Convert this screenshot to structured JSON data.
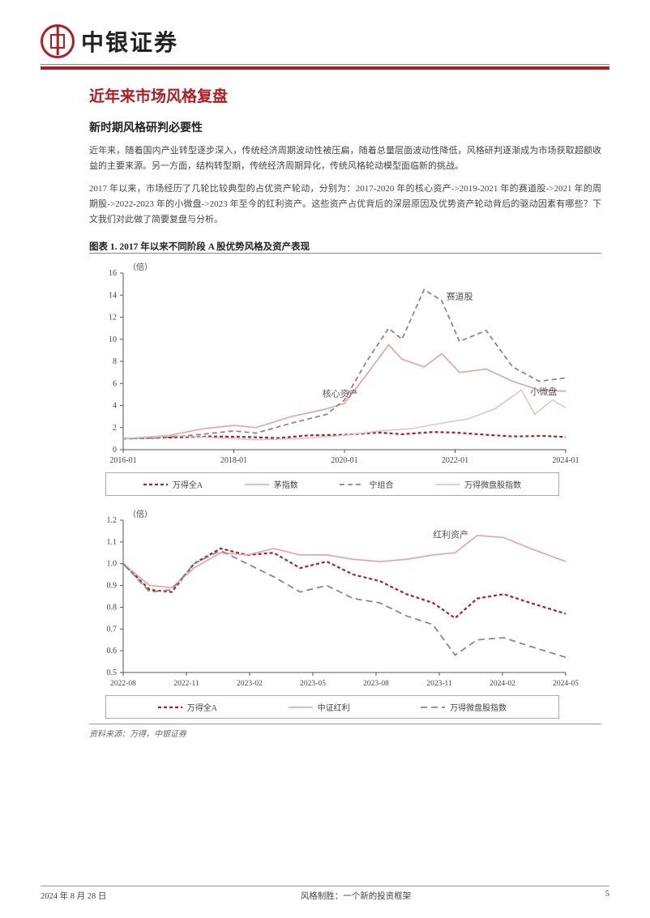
{
  "header": {
    "company_name": "中银证券"
  },
  "section": {
    "title": "近年来市场风格复盘",
    "subsection_title": "新时期风格研判必要性",
    "para1": "近年来，随着国内产业转型逐步深入，传统经济周期波动性被压扁，随着总量层面波动性降低，风格研判逐渐成为市场获取超额收益的主要来源。另一方面，结构转型期，传统经济周期异化，传统风格轮动模型面临新的挑战。",
    "para2": "2017 年以来，市场经历了几轮比较典型的占优资产轮动，分别为：2017-2020 年的核心资产->2019-2021 年的赛道股->2021 年的周期股->2022-2023 年的小微盘->2023 年至今的红利资产。这些资产占优背后的深层原因及优势资产轮动背后的驱动因素有哪些？下文我们对此做了简要复盘与分析。"
  },
  "chart1": {
    "title": "图表 1. 2017 年以来不同阶段 A 股优势风格及资产表现",
    "ylabel": "（倍）",
    "y_ticks": [
      0,
      2,
      4,
      6,
      8,
      10,
      12,
      14,
      16
    ],
    "x_ticks": [
      "2016-01",
      "2018-01",
      "2020-01",
      "2022-01",
      "2024-01"
    ],
    "annotations": {
      "core_assets": "核心资产",
      "track_stocks": "赛道股",
      "micro_cap": "小微盘"
    },
    "series": {
      "wande_all_a": {
        "label": "万得全A",
        "color": "#b01e23",
        "dash": "4,3",
        "width": 2.2,
        "points": [
          [
            0,
            1.0
          ],
          [
            0.1,
            1.1
          ],
          [
            0.2,
            1.2
          ],
          [
            0.28,
            1.15
          ],
          [
            0.35,
            1.05
          ],
          [
            0.42,
            1.3
          ],
          [
            0.5,
            1.35
          ],
          [
            0.58,
            1.55
          ],
          [
            0.63,
            1.4
          ],
          [
            0.7,
            1.6
          ],
          [
            0.75,
            1.55
          ],
          [
            0.82,
            1.35
          ],
          [
            0.88,
            1.2
          ],
          [
            0.95,
            1.25
          ],
          [
            1.0,
            1.15
          ]
        ]
      },
      "mao_index": {
        "label": "茅指数",
        "color": "#e6a0a3",
        "dash": "",
        "width": 1.6,
        "points": [
          [
            0,
            1.0
          ],
          [
            0.08,
            1.1
          ],
          [
            0.18,
            1.9
          ],
          [
            0.25,
            2.2
          ],
          [
            0.3,
            2.0
          ],
          [
            0.38,
            3.0
          ],
          [
            0.46,
            3.7
          ],
          [
            0.5,
            4.2
          ],
          [
            0.55,
            6.8
          ],
          [
            0.6,
            9.5
          ],
          [
            0.63,
            8.2
          ],
          [
            0.68,
            7.5
          ],
          [
            0.72,
            8.7
          ],
          [
            0.76,
            7.0
          ],
          [
            0.82,
            7.3
          ],
          [
            0.88,
            6.2
          ],
          [
            0.94,
            5.4
          ],
          [
            1.0,
            5.3
          ]
        ]
      },
      "ning_combo": {
        "label": "宁组合",
        "color": "#888888",
        "dash": "6,4",
        "width": 1.8,
        "points": [
          [
            0,
            1.0
          ],
          [
            0.08,
            1.05
          ],
          [
            0.18,
            1.4
          ],
          [
            0.25,
            1.7
          ],
          [
            0.3,
            1.5
          ],
          [
            0.38,
            2.4
          ],
          [
            0.46,
            3.2
          ],
          [
            0.5,
            4.5
          ],
          [
            0.55,
            8.0
          ],
          [
            0.6,
            11.0
          ],
          [
            0.63,
            10.0
          ],
          [
            0.68,
            14.5
          ],
          [
            0.72,
            13.5
          ],
          [
            0.76,
            9.8
          ],
          [
            0.82,
            10.8
          ],
          [
            0.88,
            7.5
          ],
          [
            0.94,
            6.2
          ],
          [
            1.0,
            6.5
          ]
        ]
      },
      "micro_index": {
        "label": "万得微盘股指数",
        "color": "#ddbfc0",
        "dash": "",
        "width": 1.4,
        "points": [
          [
            0,
            1.0
          ],
          [
            0.1,
            1.3
          ],
          [
            0.2,
            1.1
          ],
          [
            0.3,
            0.9
          ],
          [
            0.4,
            1.0
          ],
          [
            0.5,
            1.3
          ],
          [
            0.58,
            1.7
          ],
          [
            0.65,
            1.9
          ],
          [
            0.72,
            2.4
          ],
          [
            0.78,
            2.8
          ],
          [
            0.84,
            3.7
          ],
          [
            0.9,
            5.4
          ],
          [
            0.93,
            3.2
          ],
          [
            0.97,
            4.5
          ],
          [
            1.0,
            3.8
          ]
        ]
      }
    }
  },
  "chart2": {
    "ylabel": "（倍）",
    "y_ticks": [
      0.5,
      0.6,
      0.7,
      0.8,
      0.9,
      1.0,
      1.1,
      1.2
    ],
    "x_ticks": [
      "2022-08",
      "2022-11",
      "2023-02",
      "2023-05",
      "2023-08",
      "2023-11",
      "2024-02",
      "2024-05"
    ],
    "annotation": "红利资产",
    "series": {
      "wande_all_a": {
        "label": "万得全A",
        "color": "#b01e23",
        "dash": "4,3",
        "width": 2.2,
        "points": [
          [
            0,
            1.0
          ],
          [
            0.06,
            0.88
          ],
          [
            0.11,
            0.87
          ],
          [
            0.16,
            1.0
          ],
          [
            0.22,
            1.07
          ],
          [
            0.28,
            1.04
          ],
          [
            0.34,
            1.05
          ],
          [
            0.4,
            0.98
          ],
          [
            0.46,
            1.01
          ],
          [
            0.52,
            0.95
          ],
          [
            0.58,
            0.92
          ],
          [
            0.64,
            0.86
          ],
          [
            0.7,
            0.82
          ],
          [
            0.75,
            0.75
          ],
          [
            0.8,
            0.84
          ],
          [
            0.86,
            0.86
          ],
          [
            0.92,
            0.82
          ],
          [
            1.0,
            0.77
          ]
        ]
      },
      "zhongzheng_div": {
        "label": "中证红利",
        "color": "#e6a0a3",
        "dash": "",
        "width": 1.6,
        "points": [
          [
            0,
            1.0
          ],
          [
            0.06,
            0.9
          ],
          [
            0.11,
            0.89
          ],
          [
            0.16,
            0.98
          ],
          [
            0.22,
            1.05
          ],
          [
            0.28,
            1.04
          ],
          [
            0.34,
            1.07
          ],
          [
            0.4,
            1.04
          ],
          [
            0.46,
            1.04
          ],
          [
            0.52,
            1.02
          ],
          [
            0.58,
            1.01
          ],
          [
            0.64,
            1.02
          ],
          [
            0.7,
            1.04
          ],
          [
            0.75,
            1.05
          ],
          [
            0.8,
            1.13
          ],
          [
            0.86,
            1.12
          ],
          [
            0.92,
            1.07
          ],
          [
            1.0,
            1.01
          ]
        ]
      },
      "micro_index": {
        "label": "万得微盘股指数",
        "color": "#888888",
        "dash": "8,5",
        "width": 1.8,
        "points": [
          [
            0,
            1.0
          ],
          [
            0.06,
            0.87
          ],
          [
            0.11,
            0.88
          ],
          [
            0.16,
            1.0
          ],
          [
            0.22,
            1.06
          ],
          [
            0.28,
            1.0
          ],
          [
            0.34,
            0.94
          ],
          [
            0.4,
            0.87
          ],
          [
            0.46,
            0.9
          ],
          [
            0.52,
            0.84
          ],
          [
            0.58,
            0.82
          ],
          [
            0.64,
            0.76
          ],
          [
            0.7,
            0.72
          ],
          [
            0.75,
            0.58
          ],
          [
            0.8,
            0.65
          ],
          [
            0.86,
            0.66
          ],
          [
            0.92,
            0.62
          ],
          [
            1.0,
            0.57
          ]
        ]
      }
    }
  },
  "caption": "资料来源：万得，中银证券",
  "footer": {
    "date": "2024 年 8 月 28 日",
    "center": "风格制胜：一个新的投资框架",
    "page": "5"
  },
  "colors": {
    "brand_red": "#b01e23",
    "pink": "#e6a0a3",
    "gray": "#888888",
    "light_pink": "#ddbfc0",
    "axis": "#555555",
    "tick_text": "#444444"
  }
}
